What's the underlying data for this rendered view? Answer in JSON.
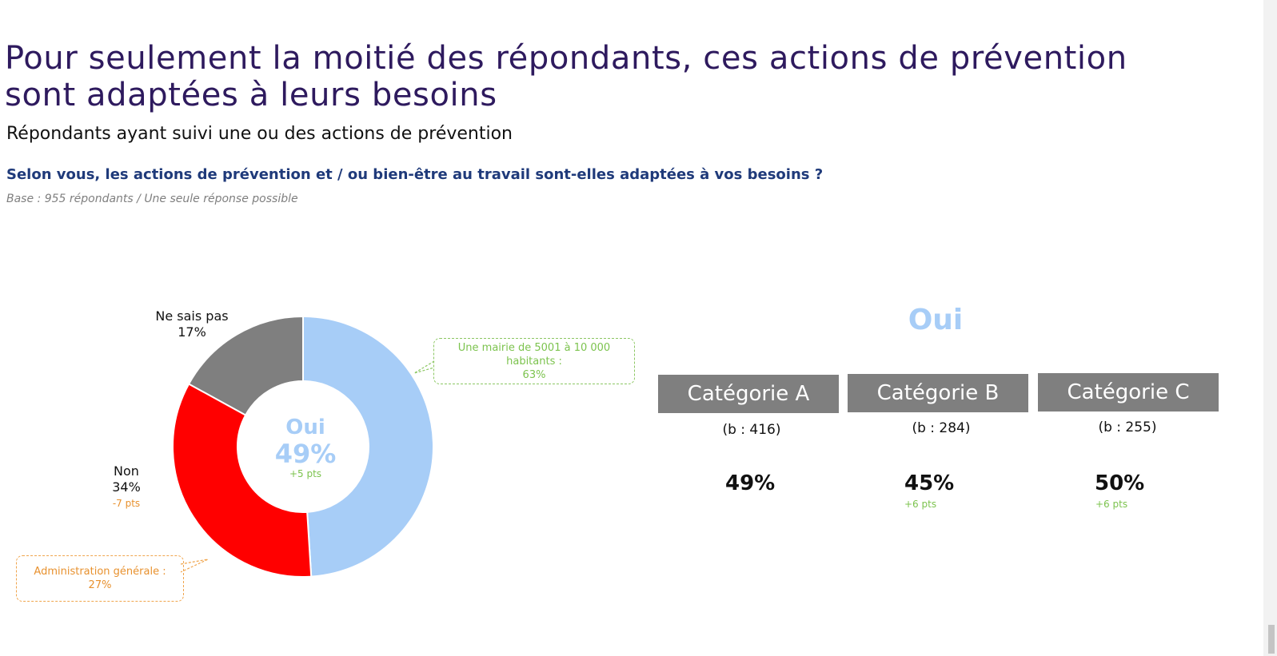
{
  "header": {
    "title": "Pour seulement la moitié des répondants, ces actions de prévention sont adaptées à leurs besoins",
    "subtitle": "Répondants ayant suivi une ou des actions de prévention",
    "question": "Selon vous, les actions de prévention et / ou bien-être au travail sont-elles adaptées à vos besoins ?",
    "base": "Base : 955 répondants / Une seule réponse possible"
  },
  "chart_data": {
    "type": "pie",
    "donut": true,
    "categories": [
      "Oui",
      "Non",
      "Ne sais pas"
    ],
    "values": [
      49,
      34,
      17
    ],
    "value_labels": [
      "49%",
      "34%",
      "17%"
    ],
    "changes": [
      "+5 pts",
      "-7 pts",
      ""
    ],
    "colors": [
      "#a7cdf7",
      "#ff0000",
      "#7f7f7f"
    ],
    "center": {
      "label": "Oui",
      "value": "49%",
      "change": "+5 pts"
    },
    "annotations": [
      {
        "line1": "Une mairie de 5001 à 10 000",
        "line2": "habitants :",
        "line3": "63%",
        "color": "#7cc34e"
      },
      {
        "line1": "Administration générale :",
        "line2": "27%",
        "color": "#e8912e"
      }
    ]
  },
  "breakdown": {
    "heading": "Oui",
    "categories": [
      {
        "name": "Catégorie A",
        "base": "(b : 416)",
        "value": "49%",
        "change": ""
      },
      {
        "name": "Catégorie B",
        "base": "(b : 284)",
        "value": "45%",
        "change": "+6 pts"
      },
      {
        "name": "Catégorie C",
        "base": "(b : 255)",
        "value": "50%",
        "change": "+6 pts"
      }
    ]
  }
}
